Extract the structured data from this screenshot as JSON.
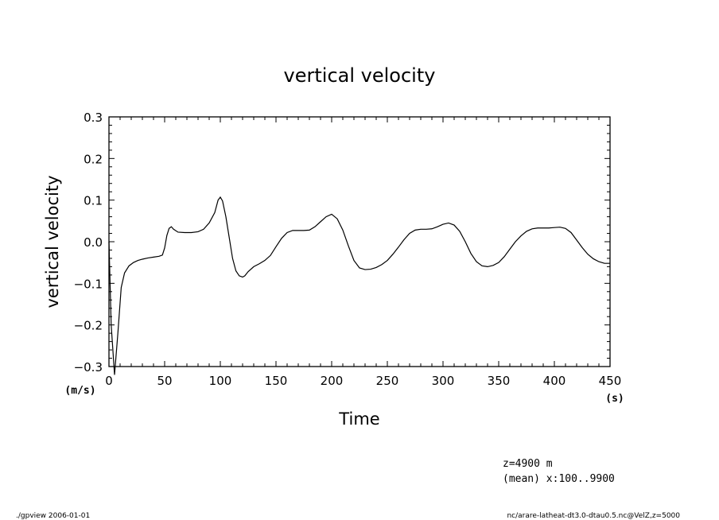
{
  "chart_data": {
    "type": "line",
    "title": "vertical velocity",
    "xlabel": "Time",
    "ylabel": "vertical velocity",
    "xunit": "(s)",
    "yunit": "(m/s)",
    "xlim": [
      0,
      450
    ],
    "ylim": [
      -0.3,
      0.3
    ],
    "xticks": [
      0,
      50,
      100,
      150,
      200,
      250,
      300,
      350,
      400,
      450
    ],
    "xtick_labels": [
      "0",
      "50",
      "100",
      "150",
      "200",
      "250",
      "300",
      "350",
      "400",
      "450"
    ],
    "yticks": [
      -0.3,
      -0.2,
      -0.1,
      0.0,
      0.1,
      0.2,
      0.3
    ],
    "ytick_labels": [
      "−0.3",
      "−0.2",
      "−0.1",
      "0.0",
      "0.1",
      "0.2",
      "0.3"
    ],
    "grid": false,
    "legend": "none",
    "line_color": "#000000",
    "series": [
      {
        "x": [
          0,
          2,
          5,
          8,
          11,
          14,
          18,
          22,
          26,
          30,
          35,
          40,
          45,
          48,
          50,
          52,
          54,
          56,
          58,
          62,
          68,
          74,
          80,
          85,
          90,
          95,
          98,
          100,
          102,
          105,
          108,
          111,
          114,
          117,
          120,
          122,
          125,
          130,
          135,
          140,
          145,
          150,
          155,
          160,
          165,
          170,
          175,
          180,
          185,
          190,
          195,
          200,
          205,
          210,
          215,
          220,
          225,
          230,
          235,
          240,
          245,
          250,
          255,
          260,
          265,
          270,
          275,
          280,
          285,
          290,
          295,
          300,
          305,
          310,
          315,
          320,
          325,
          330,
          335,
          340,
          345,
          350,
          355,
          360,
          365,
          370,
          375,
          380,
          385,
          390,
          395,
          400,
          405,
          410,
          415,
          420,
          425,
          430,
          435,
          440,
          445,
          450
        ],
        "y": [
          0.0,
          -0.2,
          -0.32,
          -0.22,
          -0.11,
          -0.075,
          -0.058,
          -0.05,
          -0.045,
          -0.042,
          -0.039,
          -0.037,
          -0.035,
          -0.032,
          -0.015,
          0.015,
          0.032,
          0.036,
          0.03,
          0.023,
          0.022,
          0.022,
          0.024,
          0.03,
          0.045,
          0.07,
          0.1,
          0.107,
          0.098,
          0.06,
          0.01,
          -0.04,
          -0.07,
          -0.082,
          -0.085,
          -0.082,
          -0.072,
          -0.06,
          -0.053,
          -0.045,
          -0.033,
          -0.012,
          0.008,
          0.022,
          0.027,
          0.027,
          0.027,
          0.028,
          0.036,
          0.048,
          0.06,
          0.066,
          0.055,
          0.028,
          -0.01,
          -0.045,
          -0.063,
          -0.067,
          -0.066,
          -0.062,
          -0.055,
          -0.045,
          -0.03,
          -0.013,
          0.005,
          0.02,
          0.028,
          0.03,
          0.03,
          0.031,
          0.036,
          0.042,
          0.045,
          0.04,
          0.025,
          0.0,
          -0.028,
          -0.048,
          -0.058,
          -0.06,
          -0.057,
          -0.05,
          -0.036,
          -0.018,
          0.0,
          0.014,
          0.025,
          0.031,
          0.033,
          0.033,
          0.033,
          0.034,
          0.035,
          0.032,
          0.022,
          0.004,
          -0.014,
          -0.03,
          -0.041,
          -0.048,
          -0.052,
          -0.052
        ]
      }
    ]
  },
  "annotations": {
    "level": "z=4900 m",
    "mean": "(mean) x:100..9900"
  },
  "footer": {
    "left": "./gpview  2006-01-01",
    "right": "nc/arare-latheat-dt3.0-dtau0.5.nc@VelZ,z=5000"
  }
}
